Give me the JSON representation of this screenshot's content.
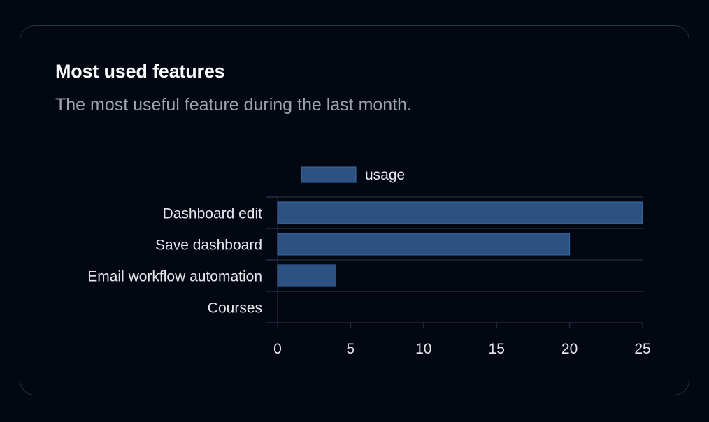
{
  "card": {
    "title": "Most used features",
    "subtitle": "The most useful feature during the last month."
  },
  "chart_data": {
    "type": "bar",
    "orientation": "horizontal",
    "categories": [
      "Dashboard edit",
      "Save dashboard",
      "Email workflow automation",
      "Courses"
    ],
    "series": [
      {
        "name": "usage",
        "values": [
          25,
          20,
          4,
          0
        ],
        "color": "#2c5282"
      }
    ],
    "xlim": [
      0,
      25
    ],
    "xticks": [
      0,
      5,
      10,
      15,
      20,
      25
    ],
    "grid": true,
    "legend_position": "top",
    "colors": {
      "bar": "#2c5282",
      "bar_border": "#3b6aa8",
      "grid": "#1f2937",
      "text": "#e5e7eb"
    }
  }
}
